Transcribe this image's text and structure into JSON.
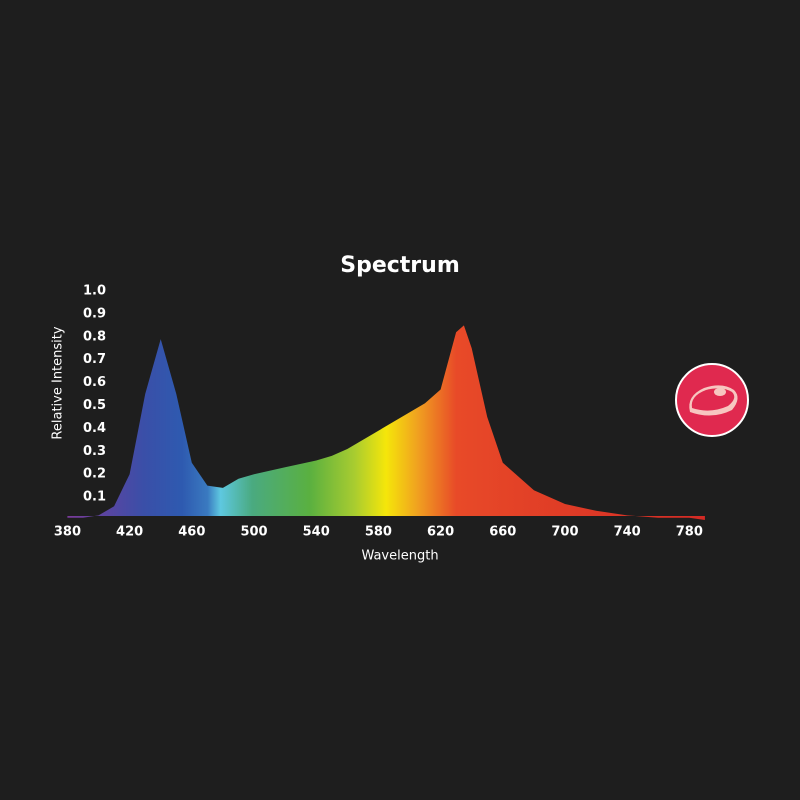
{
  "chart_data": {
    "type": "area",
    "title": "Spectrum",
    "x_label": "Wavelength",
    "y_label": "Relative Intensity",
    "x": [
      380,
      390,
      400,
      410,
      420,
      430,
      440,
      450,
      460,
      470,
      480,
      490,
      500,
      520,
      540,
      550,
      560,
      580,
      600,
      610,
      620,
      630,
      635,
      640,
      650,
      660,
      680,
      700,
      720,
      740,
      760,
      780,
      790
    ],
    "values": [
      0.01,
      0.01,
      0.02,
      0.06,
      0.2,
      0.55,
      0.79,
      0.55,
      0.25,
      0.15,
      0.14,
      0.18,
      0.2,
      0.23,
      0.26,
      0.28,
      0.31,
      0.39,
      0.47,
      0.51,
      0.57,
      0.82,
      0.85,
      0.75,
      0.45,
      0.25,
      0.13,
      0.07,
      0.04,
      0.02,
      0.01,
      0.01,
      0.0
    ],
    "xlim": [
      372,
      792
    ],
    "ylim": [
      0,
      1
    ],
    "xticks": [
      380,
      420,
      460,
      500,
      540,
      580,
      620,
      660,
      700,
      740,
      780
    ],
    "yticks": [
      0.1,
      0.2,
      0.3,
      0.4,
      0.5,
      0.6,
      0.7,
      0.8,
      0.9,
      {
        "value": 1,
        "label": "1.0"
      }
    ],
    "grid": false
  }
}
